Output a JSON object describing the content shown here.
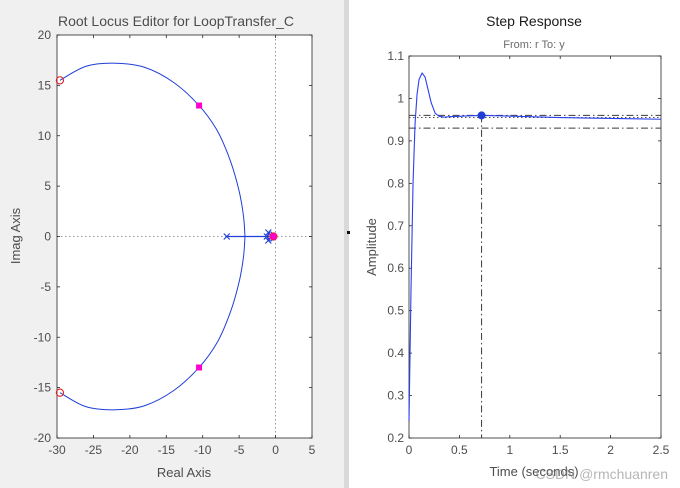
{
  "colors": {
    "locus": "#1f3fd6",
    "zero": "#e0201f",
    "closed_loop_pole": "#ff00cc",
    "pole": "#1f3fd6",
    "step": "#2a3ff0",
    "marker": "#1f3fd6",
    "guide": "#262626",
    "bound": "#3a3a3a"
  },
  "chart_data": [
    {
      "type": "scatter",
      "title": "Root Locus Editor for LoopTransfer_C",
      "xlabel": "Real Axis",
      "ylabel": "Imag Axis",
      "xlim": [
        -30,
        5
      ],
      "ylim": [
        -20,
        20
      ],
      "xticks": [
        -30,
        -25,
        -20,
        -15,
        -10,
        -5,
        0,
        5
      ],
      "yticks": [
        -20,
        -15,
        -10,
        -5,
        0,
        5,
        10,
        15,
        20
      ],
      "grid": false,
      "locus_upper": [
        [
          -29.6,
          15.5
        ],
        [
          -26,
          16.9
        ],
        [
          -22,
          17.2
        ],
        [
          -18,
          16.8
        ],
        [
          -14,
          15.3
        ],
        [
          -10.5,
          13.0
        ],
        [
          -8,
          10.5
        ],
        [
          -6.2,
          7.5
        ],
        [
          -5,
          4.5
        ],
        [
          -4.4,
          2
        ],
        [
          -4.2,
          0
        ]
      ],
      "locus_real_segment": [
        [
          -6.7,
          0
        ],
        [
          -0.9,
          0
        ]
      ],
      "open_loop_poles": [
        [
          -6.7,
          0
        ],
        [
          -1.2,
          0
        ],
        [
          -1.0,
          0.4
        ],
        [
          -1.0,
          -0.4
        ]
      ],
      "zeros": [
        [
          -29.6,
          15.5
        ],
        [
          -29.6,
          -15.5
        ],
        [
          -0.3,
          0
        ]
      ],
      "closed_loop_poles": [
        [
          -10.5,
          13.0
        ],
        [
          -10.5,
          -13.0
        ],
        [
          -0.3,
          0
        ]
      ]
    },
    {
      "type": "line",
      "title": "Step Response",
      "subtitle": "From: r  To: y",
      "xlabel": "Time (seconds)",
      "ylabel": "Amplitude",
      "xlim": [
        0,
        2.5
      ],
      "ylim": [
        0.2,
        1.1
      ],
      "xticks": [
        0,
        0.5,
        1,
        1.5,
        2,
        2.5
      ],
      "yticks": [
        0.2,
        0.3,
        0.4,
        0.5,
        0.6,
        0.7,
        0.8,
        0.9,
        1,
        1.1
      ],
      "grid": false,
      "x": [
        0,
        0.02,
        0.04,
        0.06,
        0.08,
        0.1,
        0.13,
        0.16,
        0.19,
        0.22,
        0.26,
        0.3,
        0.35,
        0.4,
        0.5,
        0.6,
        0.72,
        0.9,
        1.2,
        1.5,
        2.0,
        2.5
      ],
      "y": [
        0.24,
        0.55,
        0.8,
        0.94,
        1.01,
        1.045,
        1.06,
        1.05,
        1.02,
        0.99,
        0.965,
        0.958,
        0.956,
        0.957,
        0.958,
        0.959,
        0.96,
        0.959,
        0.957,
        0.955,
        0.953,
        0.951
      ],
      "final_value": 0.955,
      "bound_upper": 0.96,
      "bound_lower": 0.93,
      "settling_marker": [
        0.72,
        0.96
      ]
    }
  ],
  "watermark": "CSDN @rmchuanren"
}
